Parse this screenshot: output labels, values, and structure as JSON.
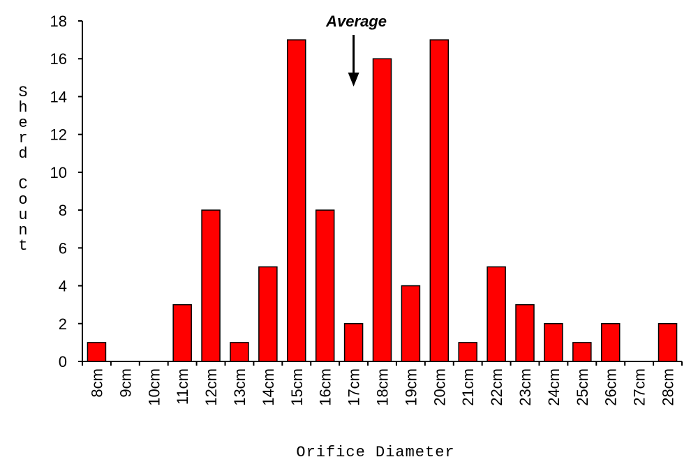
{
  "chart_data": {
    "type": "bar",
    "xlabel": "Orifice Diameter",
    "ylabel": "Sherd Count",
    "ylim": [
      0,
      18
    ],
    "yticks": [
      0,
      2,
      4,
      6,
      8,
      10,
      12,
      14,
      16,
      18
    ],
    "categories": [
      "8cm",
      "9cm",
      "10cm",
      "11cm",
      "12cm",
      "13cm",
      "14cm",
      "15cm",
      "16cm",
      "17cm",
      "18cm",
      "19cm",
      "20cm",
      "21cm",
      "22cm",
      "23cm",
      "24cm",
      "25cm",
      "26cm",
      "27cm",
      "28cm"
    ],
    "values": [
      1,
      0,
      0,
      3,
      8,
      1,
      5,
      17,
      8,
      2,
      16,
      4,
      17,
      1,
      5,
      3,
      2,
      1,
      2,
      0,
      2
    ],
    "bar_color": "#ff0000",
    "grid": false,
    "annotations": [
      {
        "text": "Average",
        "category": "17cm"
      }
    ]
  }
}
